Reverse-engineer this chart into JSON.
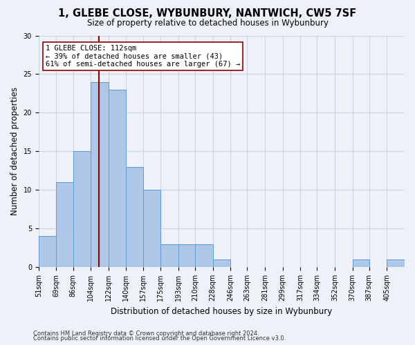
{
  "title": "1, GLEBE CLOSE, WYBUNBURY, NANTWICH, CW5 7SF",
  "subtitle": "Size of property relative to detached houses in Wybunbury",
  "xlabel": "Distribution of detached houses by size in Wybunbury",
  "ylabel": "Number of detached properties",
  "bin_labels": [
    "51sqm",
    "69sqm",
    "86sqm",
    "104sqm",
    "122sqm",
    "140sqm",
    "157sqm",
    "175sqm",
    "193sqm",
    "210sqm",
    "228sqm",
    "246sqm",
    "263sqm",
    "281sqm",
    "299sqm",
    "317sqm",
    "334sqm",
    "352sqm",
    "370sqm",
    "387sqm",
    "405sqm"
  ],
  "bin_edges": [
    51,
    69,
    86,
    104,
    122,
    140,
    157,
    175,
    193,
    210,
    228,
    246,
    263,
    281,
    299,
    317,
    334,
    352,
    370,
    387,
    405
  ],
  "counts": [
    4,
    11,
    15,
    24,
    23,
    13,
    10,
    3,
    3,
    3,
    1,
    0,
    0,
    0,
    0,
    0,
    0,
    0,
    1,
    0,
    1
  ],
  "bar_color": "#aec6e8",
  "bar_edge_color": "#5b9bd5",
  "grid_color": "#c8d4e8",
  "property_value": 112,
  "vline_color": "#8b0000",
  "annotation_line1": "1 GLEBE CLOSE: 112sqm",
  "annotation_line2": "← 39% of detached houses are smaller (43)",
  "annotation_line3": "61% of semi-detached houses are larger (67) →",
  "annotation_box_color": "white",
  "annotation_box_edge_color": "#8b0000",
  "ylim": [
    0,
    30
  ],
  "yticks": [
    0,
    5,
    10,
    15,
    20,
    25,
    30
  ],
  "footnote1": "Contains HM Land Registry data © Crown copyright and database right 2024.",
  "footnote2": "Contains public sector information licensed under the Open Government Licence v3.0.",
  "background_color": "#eef2f8",
  "title_fontsize": 10.5,
  "subtitle_fontsize": 8.5,
  "ylabel_fontsize": 8.5,
  "xlabel_fontsize": 8.5,
  "tick_fontsize": 7,
  "annotation_fontsize": 7.5,
  "footnote_fontsize": 6
}
